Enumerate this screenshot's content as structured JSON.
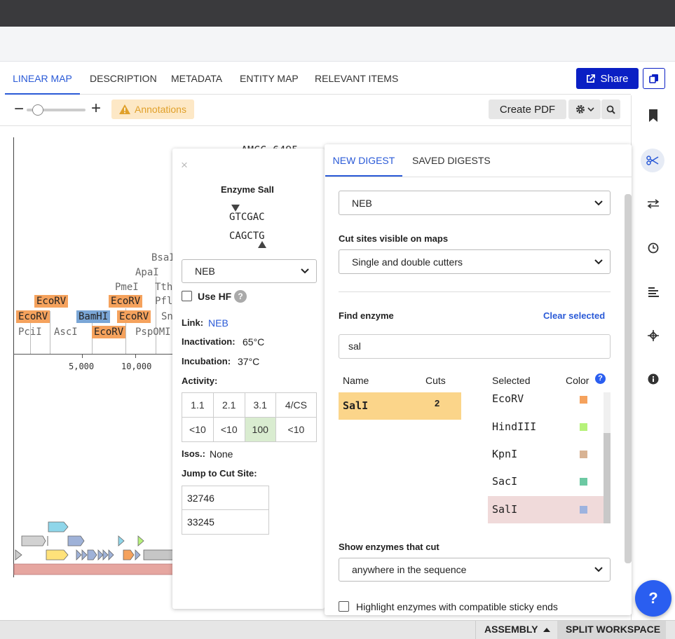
{
  "tabs": [
    {
      "label": "LINEAR MAP",
      "active": true
    },
    {
      "label": "DESCRIPTION"
    },
    {
      "label": "METADATA"
    },
    {
      "label": "ENTITY MAP"
    },
    {
      "label": "RELEVANT ITEMS"
    }
  ],
  "share_label": "Share",
  "toolbar": {
    "annotations_label": "Annotations",
    "create_pdf_label": "Create PDF",
    "zoom_level": 0.1
  },
  "map": {
    "title_fragment": "-AMCC 6495",
    "axis_ticks": [
      "5,000",
      "10,000"
    ],
    "enzymes": [
      {
        "label": "EcoRV",
        "style": "orange"
      },
      {
        "label": "EcoRV",
        "style": "orange"
      },
      {
        "label": "PciI",
        "style": "plain"
      },
      {
        "label": "AscI",
        "style": "plain"
      },
      {
        "label": "BamHI",
        "style": "blue"
      },
      {
        "label": "EcoRV",
        "style": "orange"
      },
      {
        "label": "EcoRV",
        "style": "orange"
      },
      {
        "label": "EcoRV",
        "style": "orange"
      },
      {
        "label": "PmeI",
        "style": "plain"
      },
      {
        "label": "ApaI",
        "style": "plain"
      },
      {
        "label": "BsaI",
        "style": "plain"
      },
      {
        "label": "TthI",
        "style": "plain"
      },
      {
        "label": "PflI",
        "style": "plain"
      },
      {
        "label": "Sn",
        "style": "plain"
      },
      {
        "label": "PspOMI",
        "style": "plain"
      }
    ]
  },
  "enzyme_popup": {
    "title": "Enzyme SalI",
    "top_seq": "GTCGAC",
    "bottom_seq": "CAGCTG",
    "supplier": "NEB",
    "use_hf_label": "Use HF",
    "link_label": "Link:",
    "link_value": "NEB",
    "inactivation_label": "Inactivation:",
    "inactivation_value": "65°C",
    "incubation_label": "Incubation:",
    "incubation_value": "37°C",
    "activity_label": "Activity:",
    "activity_headers": [
      "1.1",
      "2.1",
      "3.1",
      "4/CS"
    ],
    "activity_values": [
      "<10",
      "<10",
      "100",
      "<10"
    ],
    "isos_label": "Isos.:",
    "isos_value": "None",
    "jump_label": "Jump to Cut Site:",
    "cut_sites": [
      "32746",
      "33245"
    ]
  },
  "digest_panel": {
    "tabs": [
      {
        "label": "NEW DIGEST",
        "active": true
      },
      {
        "label": "SAVED DIGESTS"
      }
    ],
    "supplier_value": "NEB",
    "cut_sites_label": "Cut sites visible on maps",
    "cut_sites_value": "Single and double cutters",
    "find_enzyme_label": "Find enzyme",
    "clear_selected_label": "Clear selected",
    "search_value": "sal",
    "results_headers": {
      "name": "Name",
      "cuts": "Cuts"
    },
    "results": [
      {
        "name": "SalI",
        "cuts": "2"
      }
    ],
    "selected_headers": {
      "selected": "Selected",
      "color": "Color"
    },
    "selected": [
      {
        "name": "EcoRV",
        "color": "#f5a25d"
      },
      {
        "name": "HindIII",
        "color": "#b6f27a"
      },
      {
        "name": "KpnI",
        "color": "#d8b394"
      },
      {
        "name": "SacI",
        "color": "#6cc9a3"
      },
      {
        "name": "SalI",
        "color": "#9db3df",
        "highlighted": true
      }
    ],
    "show_enzymes_label": "Show enzymes that cut",
    "show_enzymes_value": "anywhere in the sequence",
    "highlight_label": "Highlight enzymes with compatible sticky ends"
  },
  "bottom": {
    "assembly_label": "ASSEMBLY",
    "split_label": "SPLIT WORKSPACE"
  },
  "help_label": "?"
}
